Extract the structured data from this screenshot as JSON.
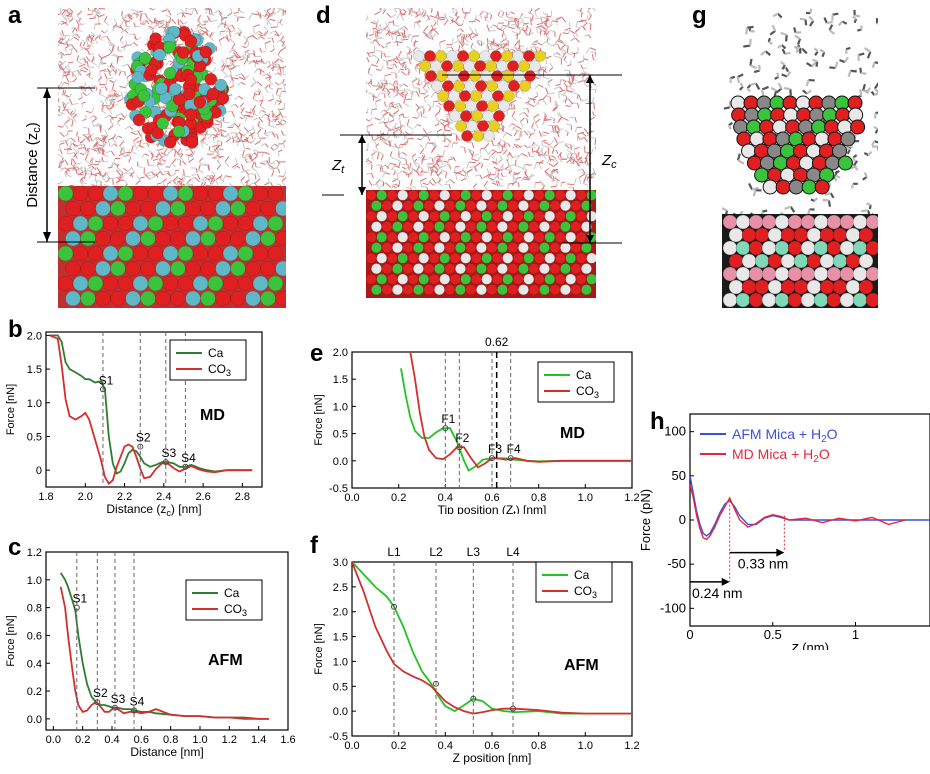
{
  "panels": {
    "a": {
      "letter": "a",
      "distance_label": "Distance (z",
      "distance_sub": "c",
      "distance_close": ")"
    },
    "d": {
      "letter": "d",
      "zt_label": "Z",
      "zt_sub": "t",
      "zc_label": "Z",
      "zc_sub": "c"
    },
    "g": {
      "letter": "g"
    },
    "b": {
      "letter": "b"
    },
    "c": {
      "letter": "c"
    },
    "e": {
      "letter": "e"
    },
    "f": {
      "letter": "f"
    },
    "h": {
      "letter": "h"
    }
  },
  "colors": {
    "ca": "#2e7d32",
    "co3": "#d32f2f",
    "ca_bright": "#22c322",
    "afm_blue": "#3b4fd8",
    "md_red": "#e8283a",
    "atom_green": "#3cc33c",
    "atom_red": "#e02020",
    "atom_cyan": "#5fb8c8",
    "atom_yellow": "#e8d020",
    "atom_pink": "#e890a8",
    "atom_white": "#e8e8e8"
  },
  "chart_data": [
    {
      "id": "b",
      "type": "line",
      "xlabel": "Distance (z",
      "xlabel_sub": "c",
      "xlabel_end": ") [nm]",
      "ylabel": "Force [nN]",
      "xlim": [
        1.8,
        2.9
      ],
      "ylim": [
        -0.25,
        2.05
      ],
      "xticks": [
        "1.8",
        "2.0",
        "2.2",
        "2.4",
        "2.6",
        "2.8"
      ],
      "yticks": [
        "0",
        "0.5",
        "1.0",
        "1.5",
        "2.0"
      ],
      "annotation": "MD",
      "legend": [
        "Ca",
        "CO",
        "3"
      ],
      "series": [
        {
          "name": "Ca",
          "x": [
            1.82,
            1.86,
            1.88,
            1.9,
            1.92,
            1.95,
            1.98,
            2.0,
            2.02,
            2.05,
            2.08,
            2.1,
            2.12,
            2.14,
            2.16,
            2.18,
            2.2,
            2.22,
            2.24,
            2.26,
            2.28,
            2.3,
            2.33,
            2.36,
            2.39,
            2.42,
            2.45,
            2.48,
            2.51,
            2.54,
            2.58,
            2.62,
            2.66,
            2.72,
            2.8,
            2.85
          ],
          "y": [
            2.0,
            2.0,
            1.9,
            1.6,
            1.5,
            1.45,
            1.4,
            1.35,
            1.35,
            1.3,
            1.32,
            1.2,
            0.5,
            0.1,
            -0.05,
            -0.02,
            0.1,
            0.25,
            0.3,
            0.28,
            0.2,
            0.1,
            0.05,
            0.08,
            0.12,
            0.12,
            0.1,
            0.05,
            0.05,
            0.08,
            0.03,
            0.0,
            -0.02,
            0.0,
            0.0,
            0.0
          ]
        },
        {
          "name": "CO3",
          "x": [
            1.82,
            1.86,
            1.88,
            1.9,
            1.92,
            1.95,
            1.98,
            2.0,
            2.02,
            2.05,
            2.08,
            2.1,
            2.12,
            2.14,
            2.16,
            2.18,
            2.2,
            2.22,
            2.24,
            2.26,
            2.28,
            2.3,
            2.33,
            2.36,
            2.39,
            2.42,
            2.45,
            2.48,
            2.51,
            2.54,
            2.58,
            2.62,
            2.66,
            2.72,
            2.8,
            2.85
          ],
          "y": [
            2.0,
            1.95,
            1.55,
            1.05,
            0.8,
            0.75,
            0.8,
            0.85,
            0.75,
            0.45,
            0.15,
            -0.1,
            -0.2,
            -0.15,
            0.05,
            0.2,
            0.35,
            0.38,
            0.35,
            0.2,
            0.02,
            -0.12,
            -0.1,
            0.02,
            0.1,
            0.1,
            0.03,
            -0.02,
            0.02,
            0.06,
            0.01,
            -0.02,
            -0.03,
            0.0,
            0.0,
            0.0
          ]
        }
      ],
      "markers": [
        {
          "label": "S1",
          "x": 2.09,
          "y": 1.2
        },
        {
          "label": "S2",
          "x": 2.28,
          "y": 0.35
        },
        {
          "label": "S3",
          "x": 2.41,
          "y": 0.12
        },
        {
          "label": "S4",
          "x": 2.51,
          "y": 0.05
        }
      ]
    },
    {
      "id": "c",
      "type": "line",
      "xlabel": "Distance [nm]",
      "ylabel": "Force [nN]",
      "xlim": [
        -0.05,
        1.6
      ],
      "ylim": [
        -0.08,
        1.2
      ],
      "xticks": [
        "0.0",
        "0.2",
        "0.4",
        "0.6",
        "0.8",
        "1.0",
        "1.2",
        "1.4",
        "1.6"
      ],
      "yticks": [
        "0.0",
        "0.2",
        "0.4",
        "0.6",
        "0.8",
        "1.0",
        "1.2"
      ],
      "annotation": "AFM",
      "legend": [
        "Ca",
        "CO",
        "3"
      ],
      "series": [
        {
          "name": "Ca",
          "x": [
            0.05,
            0.08,
            0.1,
            0.13,
            0.15,
            0.17,
            0.2,
            0.23,
            0.26,
            0.29,
            0.32,
            0.35,
            0.38,
            0.41,
            0.44,
            0.48,
            0.52,
            0.56,
            0.6,
            0.65,
            0.7,
            0.8,
            0.9,
            1.0,
            1.1,
            1.2,
            1.3,
            1.4,
            1.47
          ],
          "y": [
            1.05,
            1.0,
            0.95,
            0.85,
            0.78,
            0.6,
            0.4,
            0.25,
            0.16,
            0.12,
            0.1,
            0.1,
            0.09,
            0.08,
            0.08,
            0.07,
            0.07,
            0.06,
            0.05,
            0.05,
            0.04,
            0.03,
            0.02,
            0.02,
            0.01,
            0.01,
            0.01,
            0.0,
            0.0
          ]
        },
        {
          "name": "CO3",
          "x": [
            0.05,
            0.08,
            0.1,
            0.13,
            0.15,
            0.17,
            0.2,
            0.23,
            0.26,
            0.29,
            0.32,
            0.35,
            0.38,
            0.41,
            0.44,
            0.48,
            0.52,
            0.56,
            0.6,
            0.65,
            0.7,
            0.8,
            0.9,
            1.0,
            1.1,
            1.2,
            1.3,
            1.4,
            1.47
          ],
          "y": [
            0.95,
            0.8,
            0.6,
            0.35,
            0.2,
            0.1,
            0.05,
            0.06,
            0.1,
            0.12,
            0.09,
            0.05,
            0.05,
            0.08,
            0.07,
            0.04,
            0.05,
            0.05,
            0.04,
            0.05,
            0.07,
            0.03,
            0.02,
            0.02,
            0.01,
            0.01,
            0.0,
            0.0,
            0.0
          ]
        }
      ],
      "markers": [
        {
          "label": "S1",
          "x": 0.16,
          "y": 0.8
        },
        {
          "label": "S2",
          "x": 0.3,
          "y": 0.12
        },
        {
          "label": "S3",
          "x": 0.42,
          "y": 0.08
        },
        {
          "label": "S4",
          "x": 0.55,
          "y": 0.06
        }
      ]
    },
    {
      "id": "e",
      "type": "line",
      "xlabel": "Tip position (Z",
      "xlabel_sub": "t",
      "xlabel_end": ") [nm]",
      "ylabel": "Force [nN]",
      "xlim": [
        0.0,
        1.2
      ],
      "ylim": [
        -0.5,
        2.0
      ],
      "xticks": [
        "0.0",
        "0.2",
        "0.4",
        "0.6",
        "0.8",
        "1.0",
        "1.2"
      ],
      "yticks": [
        "-0.5",
        "0.0",
        "0.5",
        "1.0",
        "1.5",
        "2.0"
      ],
      "annotation": "MD",
      "vline_label": "0.62",
      "vline_x": 0.62,
      "legend": [
        "Ca",
        "CO",
        "3"
      ],
      "series": [
        {
          "name": "Ca",
          "x": [
            0.21,
            0.23,
            0.25,
            0.27,
            0.3,
            0.33,
            0.36,
            0.39,
            0.42,
            0.45,
            0.48,
            0.5,
            0.53,
            0.56,
            0.6,
            0.62,
            0.65,
            0.7,
            0.75,
            0.8,
            0.9,
            1.0,
            1.1,
            1.2
          ],
          "y": [
            1.7,
            1.2,
            0.8,
            0.55,
            0.42,
            0.42,
            0.52,
            0.6,
            0.6,
            0.35,
            0.0,
            -0.18,
            -0.1,
            0.02,
            0.05,
            0.04,
            0.05,
            0.02,
            0.0,
            -0.01,
            0.0,
            0.0,
            0.0,
            0.0
          ]
        },
        {
          "name": "CO3",
          "x": [
            0.25,
            0.27,
            0.29,
            0.31,
            0.33,
            0.36,
            0.39,
            0.42,
            0.45,
            0.48,
            0.51,
            0.54,
            0.57,
            0.6,
            0.62,
            0.66,
            0.7,
            0.75,
            0.8,
            0.9,
            1.0,
            1.1,
            1.2
          ],
          "y": [
            2.0,
            1.5,
            0.9,
            0.45,
            0.2,
            0.05,
            0.03,
            0.12,
            0.25,
            0.25,
            0.05,
            -0.12,
            -0.05,
            0.05,
            0.05,
            0.02,
            0.05,
            0.0,
            -0.02,
            0.0,
            0.0,
            0.0,
            0.0
          ]
        }
      ],
      "markers": [
        {
          "label": "F1",
          "x": 0.4,
          "y": 0.6
        },
        {
          "label": "F2",
          "x": 0.46,
          "y": 0.25
        },
        {
          "label": "F3",
          "x": 0.6,
          "y": 0.05
        },
        {
          "label": "F4",
          "x": 0.68,
          "y": 0.05
        }
      ]
    },
    {
      "id": "f",
      "type": "line",
      "xlabel": "Z position [nm]",
      "ylabel": "Force [nN]",
      "xlim": [
        0.0,
        1.2
      ],
      "ylim": [
        -0.5,
        3.0
      ],
      "xticks": [
        "0.0",
        "0.2",
        "0.4",
        "0.6",
        "0.8",
        "1.0",
        "1.2"
      ],
      "yticks": [
        "-0.5",
        "0.0",
        "0.5",
        "1.0",
        "1.5",
        "2.0",
        "2.5",
        "3.0"
      ],
      "annotation": "AFM",
      "legend": [
        "Ca",
        "CO",
        "3"
      ],
      "series": [
        {
          "name": "Ca",
          "x": [
            0.0,
            0.05,
            0.1,
            0.15,
            0.18,
            0.22,
            0.26,
            0.3,
            0.34,
            0.37,
            0.4,
            0.44,
            0.48,
            0.52,
            0.56,
            0.6,
            0.65,
            0.7,
            0.8,
            0.9,
            1.0,
            1.1,
            1.2
          ],
          "y": [
            3.0,
            2.75,
            2.5,
            2.3,
            2.1,
            1.7,
            1.2,
            0.8,
            0.55,
            0.3,
            0.1,
            0.0,
            0.12,
            0.25,
            0.2,
            0.05,
            0.0,
            -0.02,
            0.0,
            -0.05,
            -0.05,
            -0.05,
            -0.05
          ]
        },
        {
          "name": "CO3",
          "x": [
            0.0,
            0.05,
            0.1,
            0.15,
            0.18,
            0.22,
            0.26,
            0.3,
            0.34,
            0.37,
            0.4,
            0.44,
            0.48,
            0.52,
            0.56,
            0.6,
            0.65,
            0.7,
            0.8,
            0.9,
            1.0,
            1.1,
            1.2
          ],
          "y": [
            3.0,
            2.4,
            1.7,
            1.2,
            0.95,
            0.8,
            0.7,
            0.62,
            0.5,
            0.35,
            0.2,
            0.08,
            0.0,
            -0.05,
            -0.02,
            0.02,
            0.05,
            0.05,
            0.02,
            -0.03,
            -0.05,
            -0.05,
            -0.05
          ]
        }
      ],
      "markers": [
        {
          "label": "L1",
          "x": 0.18,
          "y": 2.1
        },
        {
          "label": "L2",
          "x": 0.36,
          "y": 0.55
        },
        {
          "label": "L3",
          "x": 0.52,
          "y": 0.25
        },
        {
          "label": "L4",
          "x": 0.69,
          "y": 0.05
        }
      ]
    },
    {
      "id": "h",
      "type": "line",
      "xlabel": "z",
      "xlabel_end": " (nm)",
      "ylabel": "Force (pN)",
      "xlim": [
        0.0,
        1.45
      ],
      "ylim": [
        -120,
        120
      ],
      "xticks": [
        "0",
        "0.5",
        "1"
      ],
      "yticks": [
        "-100",
        "-50",
        "0",
        "50",
        "100"
      ],
      "legend_afm": "AFM Mica + H",
      "legend_md": "MD Mica + H",
      "legend_sub": "2",
      "legend_tail": "O",
      "annot_1": "0.33 nm",
      "annot_2": "0.24 nm",
      "series": [
        {
          "name": "AFM Mica + H2O",
          "x": [
            0.0,
            0.02,
            0.04,
            0.06,
            0.08,
            0.1,
            0.12,
            0.15,
            0.18,
            0.21,
            0.24,
            0.27,
            0.3,
            0.35,
            0.4,
            0.45,
            0.5,
            0.55,
            0.6,
            0.7,
            0.8,
            0.9,
            1.0,
            1.1,
            1.2,
            1.3,
            1.45
          ],
          "y": [
            50,
            30,
            10,
            -5,
            -15,
            -18,
            -15,
            -5,
            8,
            18,
            22,
            15,
            5,
            -5,
            -5,
            2,
            5,
            3,
            0,
            0,
            0,
            0,
            0,
            0,
            0,
            0,
            0
          ]
        },
        {
          "name": "MD Mica + H2O",
          "x": [
            0.0,
            0.02,
            0.04,
            0.06,
            0.08,
            0.1,
            0.12,
            0.15,
            0.18,
            0.21,
            0.24,
            0.27,
            0.3,
            0.35,
            0.4,
            0.45,
            0.5,
            0.55,
            0.6,
            0.7,
            0.8,
            0.9,
            1.0,
            1.1,
            1.2,
            1.3
          ],
          "y": [
            40,
            25,
            5,
            -10,
            -20,
            -22,
            -18,
            -8,
            5,
            15,
            25,
            12,
            0,
            -8,
            -4,
            3,
            6,
            4,
            0,
            2,
            -3,
            2,
            -1,
            3,
            -5,
            0
          ]
        }
      ]
    }
  ]
}
